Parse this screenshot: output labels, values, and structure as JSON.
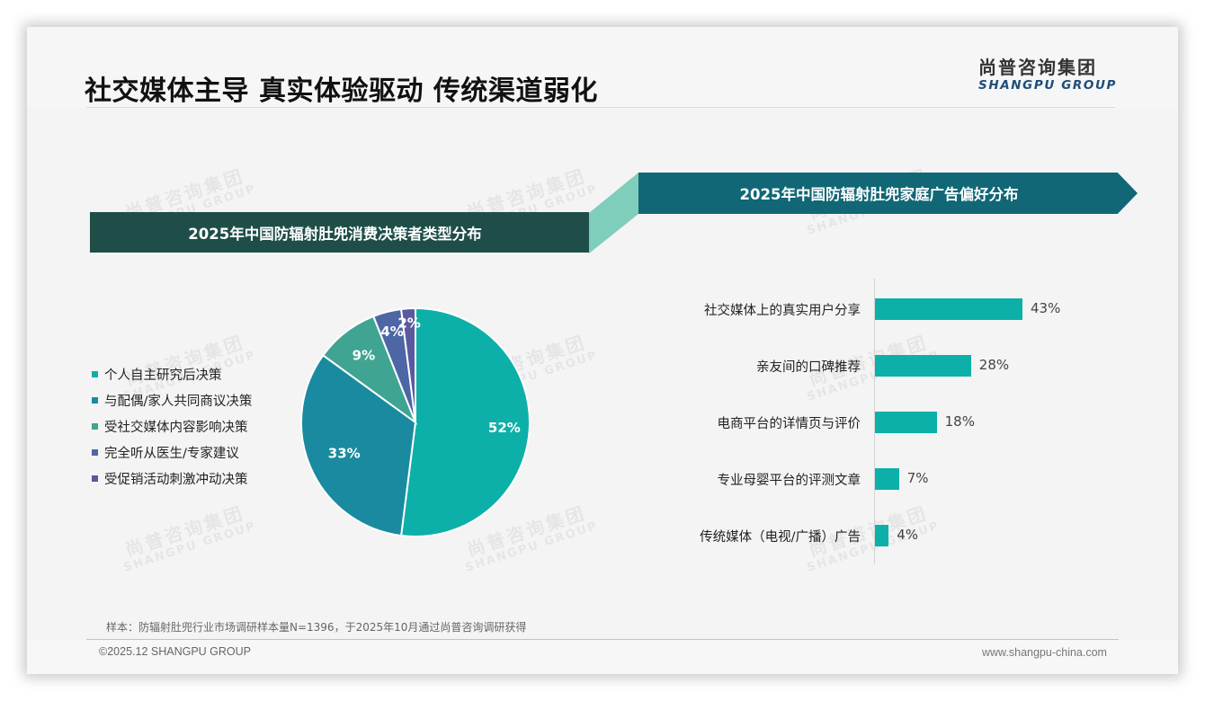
{
  "header": {
    "title": "社交媒体主导 真实体验驱动 传统渠道弱化",
    "logo_cn": "尚普咨询集团",
    "logo_en": "SHANGPU GROUP"
  },
  "watermark": {
    "cn": "尚普咨询集团",
    "en": "SHANGPU GROUP"
  },
  "sections": {
    "left_title": "2025年中国防辐射肚兜消费决策者类型分布",
    "right_title": "2025年中国防辐射肚兜家庭广告偏好分布"
  },
  "colors": {
    "teal": "#0db0a8",
    "blue_teal": "#1a8aa0",
    "green_teal": "#3fa592",
    "slate_blue": "#4c66a6",
    "indigo": "#5a59a0",
    "banner_left": "#1f4e49",
    "banner_right": "#116775",
    "connector": "#7fcdbb"
  },
  "legend": [
    {
      "label": "个人自主研究后决策",
      "color": "#0db0a8"
    },
    {
      "label": "与配偶/家人共同商议决策",
      "color": "#1a8aa0"
    },
    {
      "label": "受社交媒体内容影响决策",
      "color": "#3fa592"
    },
    {
      "label": "完全听从医生/专家建议",
      "color": "#4c66a6"
    },
    {
      "label": "受促销活动刺激冲动决策",
      "color": "#5a59a0"
    }
  ],
  "chart_data": [
    {
      "type": "pie",
      "title": "2025年中国防辐射肚兜消费决策者类型分布",
      "categories": [
        "个人自主研究后决策",
        "与配偶/家人共同商议决策",
        "受社交媒体内容影响决策",
        "完全听从医生/专家建议",
        "受促销活动刺激冲动决策"
      ],
      "values": [
        52,
        33,
        9,
        4,
        2
      ],
      "value_labels": [
        "52%",
        "33%",
        "9%",
        "4%",
        "2%"
      ],
      "colors": [
        "#0db0a8",
        "#1a8aa0",
        "#3fa592",
        "#4c66a6",
        "#5a59a0"
      ],
      "legend_position": "left",
      "unit": "%"
    },
    {
      "type": "bar",
      "orientation": "horizontal",
      "title": "2025年中国防辐射肚兜家庭广告偏好分布",
      "categories": [
        "社交媒体上的真实用户分享",
        "亲友间的口碑推荐",
        "电商平台的详情页与评价",
        "专业母婴平台的评测文章",
        "传统媒体（电视/广播）广告"
      ],
      "values": [
        43,
        28,
        18,
        7,
        4
      ],
      "value_labels": [
        "43%",
        "28%",
        "18%",
        "7%",
        "4%"
      ],
      "color": "#0db0a8",
      "xlabel": "",
      "ylabel": "",
      "grid": false,
      "unit": "%"
    }
  ],
  "footer": {
    "note": "样本：防辐射肚兜行业市场调研样本量N=1396，于2025年10月通过尚普咨询调研获得",
    "copyright": "©2025.12 SHANGPU GROUP",
    "website": "www.shangpu-china.com"
  }
}
